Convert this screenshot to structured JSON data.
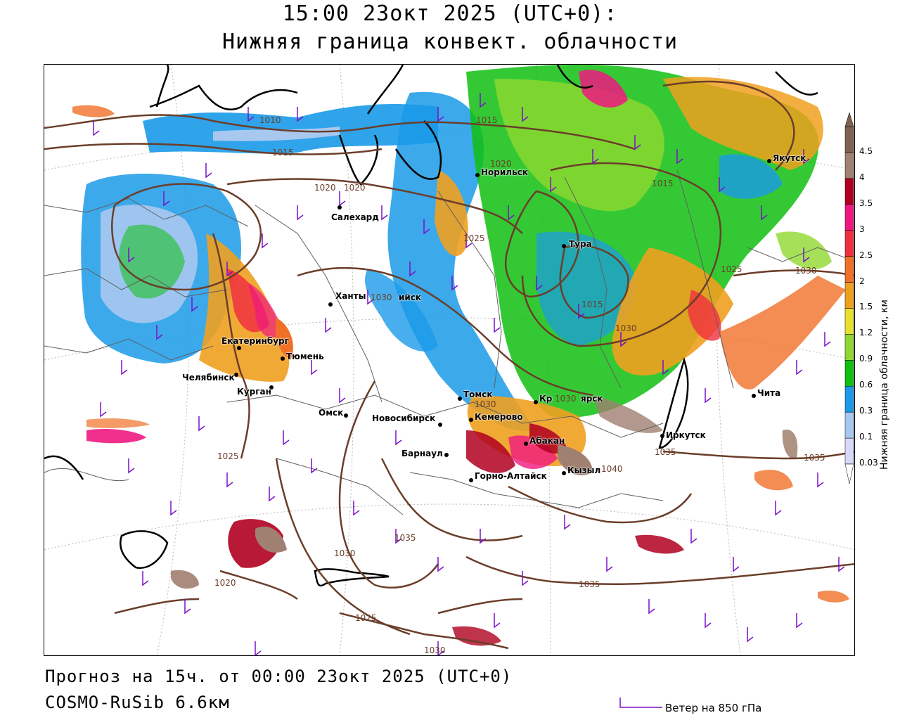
{
  "header": {
    "title": "15:00 23окт 2025 (UTC+0):",
    "subtitle": "Нижняя граница конвект. облачности"
  },
  "footer": {
    "forecast": "Прогноз на 15ч. от 00:00 23окт 2025 (UTC+0)",
    "model": "COSMO-RuSib 6.6км",
    "wind_legend": "Ветер на 850 гПа"
  },
  "legend": {
    "title": "Нижняя граница облачности, км",
    "levels": [
      {
        "label": "0.03",
        "color": "#d8d8f8"
      },
      {
        "label": "0.1",
        "color": "#a8c8f0"
      },
      {
        "label": "0.3",
        "color": "#1a9ae8"
      },
      {
        "label": "0.6",
        "color": "#10c010"
      },
      {
        "label": "0.9",
        "color": "#90d830"
      },
      {
        "label": "1.2",
        "color": "#e8e030"
      },
      {
        "label": "1.5",
        "color": "#f0a020"
      },
      {
        "label": "2",
        "color": "#f07028"
      },
      {
        "label": "2.5",
        "color": "#f03040"
      },
      {
        "label": "3",
        "color": "#f01880"
      },
      {
        "label": "3.5",
        "color": "#b00020"
      },
      {
        "label": "4",
        "color": "#a08070"
      },
      {
        "label": "4.5",
        "color": "#806050"
      }
    ]
  },
  "colors": {
    "isobar": "#6b3e2a",
    "coast": "#000000",
    "border": "#606060",
    "wind_barb": "#7a10c8"
  },
  "cities": [
    {
      "name": "Якутск"
    },
    {
      "name": "Норильск"
    },
    {
      "name": "Салехард"
    },
    {
      "name": "Тура"
    },
    {
      "name": "Ханты"
    },
    {
      "name": "ийск"
    },
    {
      "name": "Екатеринбург"
    },
    {
      "name": "Тюмень"
    },
    {
      "name": "Челябинск"
    },
    {
      "name": "Курган"
    },
    {
      "name": "Омск"
    },
    {
      "name": "Новосибирск"
    },
    {
      "name": "Томск"
    },
    {
      "name": "Кемерово"
    },
    {
      "name": "Кр"
    },
    {
      "name": "ярск"
    },
    {
      "name": "Иркутск"
    },
    {
      "name": "Чита"
    },
    {
      "name": "Абакан"
    },
    {
      "name": "Барнаул"
    },
    {
      "name": "Горно-Алтайск"
    },
    {
      "name": "Кызыл"
    }
  ],
  "isobars": [
    "1010",
    "1015",
    "1020",
    "1020",
    "1015",
    "1020",
    "1015",
    "1015",
    "1025",
    "1030",
    "1025",
    "1030",
    "1030",
    "1030",
    "1035",
    "1030",
    "1025",
    "1035",
    "1035",
    "1030",
    "1020",
    "1025",
    "1030",
    "1040",
    "1035"
  ]
}
